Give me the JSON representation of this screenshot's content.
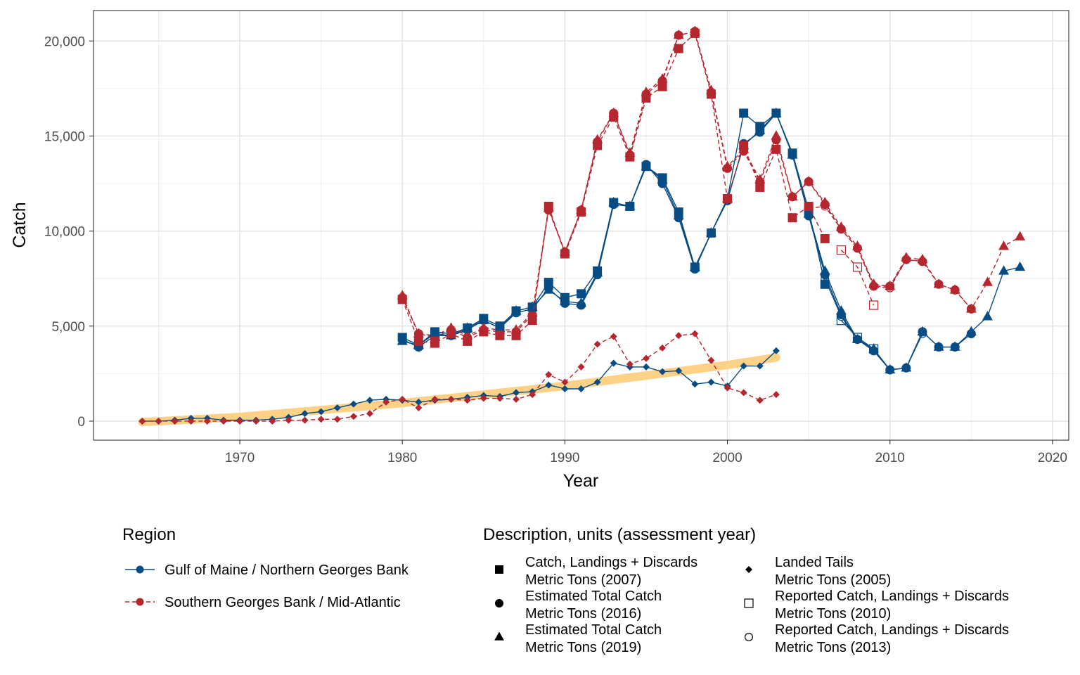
{
  "chart_data": {
    "type": "line",
    "xlabel": "Year",
    "ylabel": "Catch",
    "xlim": [
      1961,
      2021
    ],
    "ylim": [
      -1000,
      21600
    ],
    "x_ticks": [
      1970,
      1980,
      1990,
      2000,
      2010,
      2020
    ],
    "x_tick_labels": [
      "1970",
      "1980",
      "1990",
      "2000",
      "2010",
      "2020"
    ],
    "y_ticks": [
      0,
      5000,
      10000,
      15000,
      20000
    ],
    "y_tick_labels": [
      "0",
      "5,000",
      "10,000",
      "15,000",
      "20,000"
    ],
    "grid": true,
    "legend_position": "bottom",
    "colors": {
      "gom": "#084c84",
      "sgb": "#b5262f",
      "trend": "#fdcf80"
    },
    "legend": {
      "region_title": "Region",
      "regions": [
        {
          "key": "gom",
          "label": "Gulf of Maine / Northern Georges Bank",
          "dash": "solid"
        },
        {
          "key": "sgb",
          "label": "Southern Georges Bank / Mid-Atlantic",
          "dash": "dashed"
        }
      ],
      "desc_title": "Description, units (assessment year)",
      "descriptions": [
        {
          "shape": "square",
          "line1": "Catch, Landings + Discards",
          "line2": "Metric Tons (2007)"
        },
        {
          "shape": "circle",
          "line1": "Estimated Total Catch",
          "line2": "Metric Tons (2016)"
        },
        {
          "shape": "triangle",
          "line1": "Estimated Total Catch",
          "line2": "Metric Tons (2019)"
        },
        {
          "shape": "diamond",
          "line1": "Landed Tails",
          "line2": "Metric Tons (2005)"
        },
        {
          "shape": "open-square",
          "line1": "Reported Catch, Landings + Discards",
          "line2": "Metric Tons (2010)"
        },
        {
          "shape": "open-circle",
          "line1": "Reported Catch, Landings + Discards",
          "line2": "Metric Tons (2013)"
        }
      ]
    },
    "trend": {
      "x": [
        1964,
        1970,
        1980,
        1990,
        2000,
        2003
      ],
      "y": [
        -50,
        220,
        950,
        1850,
        2950,
        3350
      ]
    },
    "series": [
      {
        "region": "gom",
        "shape": "square",
        "x": [
          1980,
          1981,
          1982,
          1983,
          1984,
          1985,
          1986,
          1987,
          1988,
          1989,
          1990,
          1991,
          1992,
          1993,
          1994,
          1995,
          1996,
          1997,
          1998,
          1999,
          2000,
          2001,
          2002,
          2003,
          2004,
          2005,
          2006
        ],
        "y": [
          4400,
          4000,
          4700,
          4600,
          4900,
          5400,
          5000,
          5800,
          6000,
          7300,
          6500,
          6700,
          7900,
          11500,
          11300,
          13400,
          12800,
          11000,
          8100,
          9900,
          11700,
          16200,
          15500,
          16200,
          14100,
          11100,
          7200
        ]
      },
      {
        "region": "gom",
        "shape": "circle",
        "x": [
          1980,
          1981,
          1982,
          1983,
          1984,
          1985,
          1986,
          1987,
          1988,
          1989,
          1990,
          1991,
          1992,
          1993,
          1994,
          1995,
          1996,
          1997,
          1998,
          1999,
          2000,
          2001,
          2002,
          2003,
          2004,
          2005,
          2006,
          2007,
          2008,
          2009,
          2010,
          2011,
          2012,
          2013,
          2014,
          2015
        ],
        "y": [
          4300,
          3900,
          4500,
          4500,
          4800,
          5300,
          4900,
          5700,
          5900,
          7000,
          6200,
          6100,
          7700,
          11400,
          11300,
          13500,
          12500,
          10700,
          8000,
          9900,
          11600,
          14600,
          15200,
          16200,
          14000,
          10800,
          7700,
          5600,
          4300,
          3700,
          2700,
          2800,
          4700,
          3900,
          3900,
          4600
        ]
      },
      {
        "region": "gom",
        "shape": "triangle",
        "x": [
          1980,
          1981,
          1982,
          1983,
          1984,
          1985,
          1986,
          1987,
          1988,
          1989,
          1990,
          1991,
          1992,
          1993,
          1994,
          1995,
          1996,
          1997,
          1998,
          1999,
          2000,
          2001,
          2002,
          2003,
          2004,
          2005,
          2006,
          2007,
          2008,
          2009,
          2010,
          2011,
          2012,
          2013,
          2014,
          2015,
          2016,
          2017,
          2018
        ],
        "y": [
          4200,
          4000,
          4600,
          4500,
          4900,
          5300,
          4900,
          5800,
          6000,
          6900,
          6300,
          6200,
          7800,
          11500,
          11300,
          13400,
          12700,
          10800,
          8100,
          9900,
          11700,
          14500,
          15300,
          16200,
          14000,
          10900,
          7900,
          5800,
          4300,
          3800,
          2700,
          2800,
          4700,
          3900,
          3900,
          4700,
          5500,
          7900,
          8100
        ]
      },
      {
        "region": "gom",
        "shape": "diamond",
        "x": [
          1964,
          1965,
          1966,
          1967,
          1968,
          1969,
          1970,
          1971,
          1972,
          1973,
          1974,
          1975,
          1976,
          1977,
          1978,
          1979,
          1980,
          1981,
          1982,
          1983,
          1984,
          1985,
          1986,
          1987,
          1988,
          1989,
          1990,
          1991,
          1992,
          1993,
          1994,
          1995,
          1996,
          1997,
          1998,
          1999,
          2000,
          2001,
          2002,
          2003
        ],
        "y": [
          0,
          0,
          50,
          150,
          150,
          50,
          50,
          50,
          100,
          200,
          400,
          500,
          700,
          900,
          1100,
          1150,
          1100,
          1000,
          1100,
          1150,
          1250,
          1350,
          1300,
          1500,
          1550,
          1900,
          1700,
          1700,
          2050,
          3050,
          2850,
          2850,
          2600,
          2650,
          1950,
          2050,
          1850,
          2900,
          2900,
          3700
        ]
      },
      {
        "region": "gom",
        "shape": "open-square",
        "x": [
          2007,
          2008,
          2009
        ],
        "y": [
          5300,
          4400,
          3800
        ]
      },
      {
        "region": "gom",
        "shape": "open-circle",
        "x": [
          2006,
          2007,
          2008,
          2009,
          2010,
          2011,
          2012
        ],
        "y": [
          7500,
          5500,
          4300,
          3700,
          2700,
          2800,
          4600
        ]
      },
      {
        "region": "sgb",
        "shape": "square",
        "x": [
          1980,
          1981,
          1982,
          1983,
          1984,
          1985,
          1986,
          1987,
          1988,
          1989,
          1990,
          1991,
          1992,
          1993,
          1994,
          1995,
          1996,
          1997,
          1998,
          1999,
          2000,
          2001,
          2002,
          2003,
          2004,
          2005,
          2006
        ],
        "y": [
          6400,
          4200,
          4100,
          4600,
          4200,
          4700,
          4500,
          4500,
          5300,
          11300,
          8800,
          11000,
          14500,
          16000,
          13900,
          17000,
          17600,
          19600,
          20400,
          17200,
          11700,
          14500,
          12300,
          14300,
          10700,
          11300,
          9600
        ]
      },
      {
        "region": "sgb",
        "shape": "circle",
        "x": [
          1980,
          1981,
          1982,
          1983,
          1984,
          1985,
          1986,
          1987,
          1988,
          1989,
          1990,
          1991,
          1992,
          1993,
          1994,
          1995,
          1996,
          1997,
          1998,
          1999,
          2000,
          2001,
          2002,
          2003,
          2004,
          2005,
          2006,
          2007,
          2008,
          2009,
          2010,
          2011,
          2012,
          2013,
          2014,
          2015
        ],
        "y": [
          6500,
          4600,
          4400,
          4800,
          4400,
          4800,
          4700,
          4700,
          5600,
          11100,
          8900,
          11100,
          14700,
          16200,
          14000,
          17200,
          17900,
          20300,
          20500,
          17300,
          13300,
          14200,
          12600,
          14800,
          11800,
          12600,
          11400,
          10100,
          9100,
          7100,
          7100,
          8500,
          8400,
          7200,
          6900,
          5900
        ]
      },
      {
        "region": "sgb",
        "shape": "triangle",
        "x": [
          1980,
          1981,
          1982,
          1983,
          1984,
          1985,
          1986,
          1987,
          1988,
          1989,
          1990,
          1991,
          1992,
          1993,
          1994,
          1995,
          1996,
          1997,
          1998,
          1999,
          2000,
          2001,
          2002,
          2003,
          2004,
          2005,
          2006,
          2007,
          2008,
          2009,
          2010,
          2011,
          2012,
          2013,
          2014,
          2015,
          2016,
          2017,
          2018
        ],
        "y": [
          6600,
          4600,
          4500,
          4900,
          4500,
          4900,
          4800,
          4800,
          5700,
          11200,
          8900,
          11100,
          14800,
          16200,
          14100,
          17300,
          18000,
          20300,
          20500,
          17400,
          13400,
          14300,
          12700,
          15000,
          11800,
          12600,
          11500,
          10200,
          9200,
          7200,
          7100,
          8600,
          8500,
          7200,
          6900,
          5900,
          7300,
          9200,
          9700
        ]
      },
      {
        "region": "sgb",
        "shape": "diamond",
        "x": [
          1964,
          1965,
          1966,
          1967,
          1968,
          1969,
          1970,
          1971,
          1972,
          1973,
          1974,
          1975,
          1976,
          1977,
          1978,
          1979,
          1980,
          1981,
          1982,
          1983,
          1984,
          1985,
          1986,
          1987,
          1988,
          1989,
          1990,
          1991,
          1992,
          1993,
          1994,
          1995,
          1996,
          1997,
          1998,
          1999,
          2000,
          2001,
          2002,
          2003
        ],
        "y": [
          0,
          0,
          0,
          0,
          0,
          0,
          0,
          0,
          0,
          50,
          50,
          100,
          100,
          250,
          400,
          1000,
          1150,
          700,
          1150,
          1150,
          1100,
          1200,
          1200,
          1150,
          1400,
          2450,
          2050,
          2850,
          4050,
          4450,
          3000,
          3300,
          3850,
          4500,
          4600,
          3200,
          1750,
          1500,
          1100,
          1400
        ]
      },
      {
        "region": "sgb",
        "shape": "open-square",
        "x": [
          2007,
          2008,
          2009
        ],
        "y": [
          9000,
          8100,
          6100
        ]
      },
      {
        "region": "sgb",
        "shape": "open-circle",
        "x": [
          2005,
          2006,
          2007,
          2008,
          2009,
          2010,
          2011,
          2012
        ],
        "y": [
          11200,
          11300,
          10100,
          9100,
          7100,
          7000,
          8500,
          8400
        ]
      }
    ]
  }
}
